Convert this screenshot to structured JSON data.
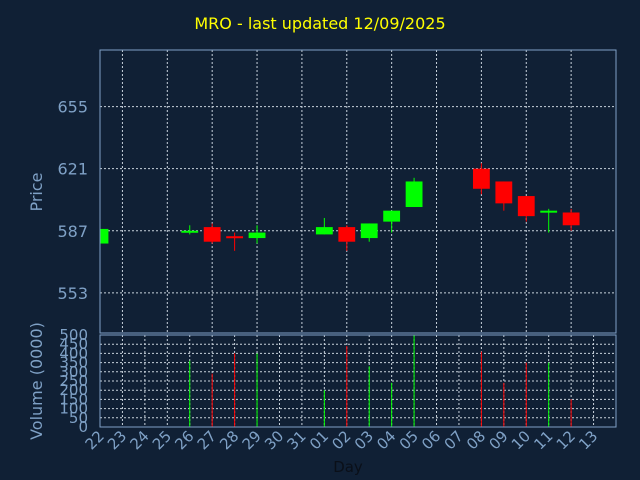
{
  "chart_data": {
    "type": "candlestick",
    "title": "MRO - last updated 12/09/2025",
    "price_panel": {
      "ylabel": "Price",
      "yticks": [
        553,
        587,
        621,
        655
      ],
      "ylim": [
        531,
        686
      ]
    },
    "volume_panel": {
      "ylabel": "Volume (0000)",
      "yticks": [
        0,
        50,
        100,
        150,
        200,
        250,
        300,
        350,
        400,
        450,
        500
      ],
      "ylim": [
        0,
        500
      ]
    },
    "xlabel": "Day",
    "x_ticks": [
      "22",
      "23",
      "24",
      "25",
      "26",
      "27",
      "28",
      "29",
      "30",
      "31",
      "01",
      "02",
      "03",
      "04",
      "05",
      "06",
      "07",
      "08",
      "09",
      "10",
      "11",
      "12",
      "13"
    ],
    "candles": [
      {
        "x": "22",
        "open": 580,
        "close": 588,
        "high": 588,
        "low": 580,
        "volume": 0,
        "dir": "up"
      },
      {
        "x": "26",
        "open": 586,
        "close": 587,
        "high": 590,
        "low": 585,
        "volume": 360,
        "dir": "up"
      },
      {
        "x": "27",
        "open": 589,
        "close": 581,
        "high": 591,
        "low": 580,
        "volume": 290,
        "dir": "down"
      },
      {
        "x": "28",
        "open": 584,
        "close": 583,
        "high": 586,
        "low": 576,
        "volume": 400,
        "dir": "down"
      },
      {
        "x": "29",
        "open": 583,
        "close": 586,
        "high": 590,
        "low": 580,
        "volume": 400,
        "dir": "up"
      },
      {
        "x": "01",
        "open": 585,
        "close": 589,
        "high": 594,
        "low": 585,
        "volume": 200,
        "dir": "up"
      },
      {
        "x": "02",
        "open": 589,
        "close": 581,
        "high": 590,
        "low": 576,
        "volume": 440,
        "dir": "down"
      },
      {
        "x": "03",
        "open": 583,
        "close": 591,
        "high": 591,
        "low": 581,
        "volume": 330,
        "dir": "up"
      },
      {
        "x": "04",
        "open": 592,
        "close": 598,
        "high": 598,
        "low": 586,
        "volume": 240,
        "dir": "up"
      },
      {
        "x": "05",
        "open": 600,
        "close": 614,
        "high": 616,
        "low": 600,
        "volume": 500,
        "dir": "up"
      },
      {
        "x": "08",
        "open": 621,
        "close": 610,
        "high": 624,
        "low": 607,
        "volume": 410,
        "dir": "down"
      },
      {
        "x": "09",
        "open": 614,
        "close": 602,
        "high": 614,
        "low": 598,
        "volume": 240,
        "dir": "down"
      },
      {
        "x": "10",
        "open": 606,
        "close": 595,
        "high": 606,
        "low": 592,
        "volume": 350,
        "dir": "down"
      },
      {
        "x": "11",
        "open": 597,
        "close": 598,
        "high": 599,
        "low": 586,
        "volume": 350,
        "dir": "up"
      },
      {
        "x": "12",
        "open": 597,
        "close": 590,
        "high": 599,
        "low": 587,
        "volume": 150,
        "dir": "down"
      }
    ],
    "colors": {
      "background": "#102035",
      "grid": "#c8d2dc",
      "frame": "#7fa1c6",
      "up": "#00ff00",
      "down": "#ff0000",
      "title": "#ffff00",
      "axis_text": "#7fa1c6"
    },
    "grid": true
  }
}
